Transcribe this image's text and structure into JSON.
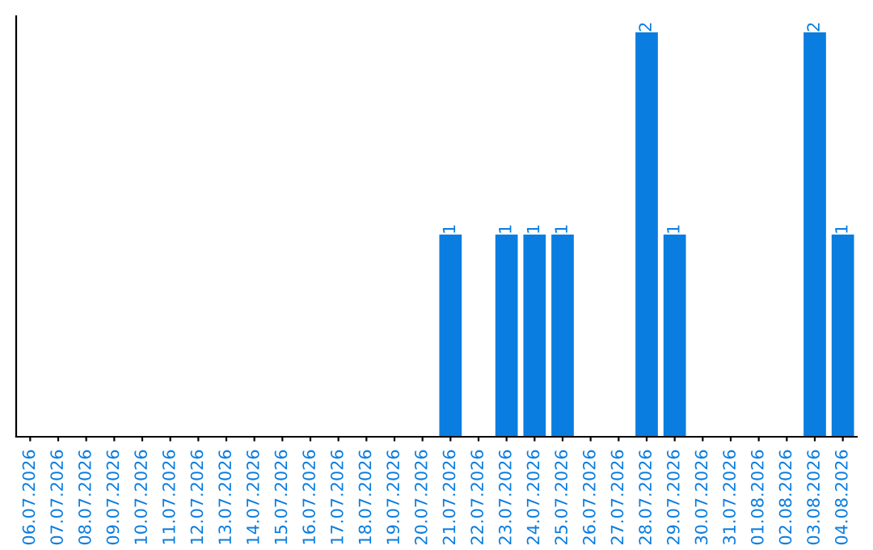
{
  "chart_data": {
    "type": "bar",
    "categories": [
      "06.07.2026",
      "07.07.2026",
      "08.07.2026",
      "09.07.2026",
      "10.07.2026",
      "11.07.2026",
      "12.07.2026",
      "13.07.2026",
      "14.07.2026",
      "15.07.2026",
      "16.07.2026",
      "17.07.2026",
      "18.07.2026",
      "19.07.2026",
      "20.07.2026",
      "21.07.2026",
      "22.07.2026",
      "23.07.2026",
      "24.07.2026",
      "25.07.2026",
      "26.07.2026",
      "27.07.2026",
      "28.07.2026",
      "29.07.2026",
      "30.07.2026",
      "31.07.2026",
      "01.08.2026",
      "02.08.2026",
      "03.08.2026",
      "04.08.2026"
    ],
    "values": [
      null,
      null,
      null,
      null,
      null,
      null,
      null,
      null,
      null,
      null,
      null,
      null,
      null,
      null,
      null,
      1,
      null,
      1,
      1,
      1,
      null,
      null,
      2,
      1,
      null,
      null,
      null,
      null,
      2,
      1
    ],
    "data_labels": true,
    "color": "#0a7de0",
    "tick_labels": "x",
    "grid": false,
    "legend": false
  }
}
